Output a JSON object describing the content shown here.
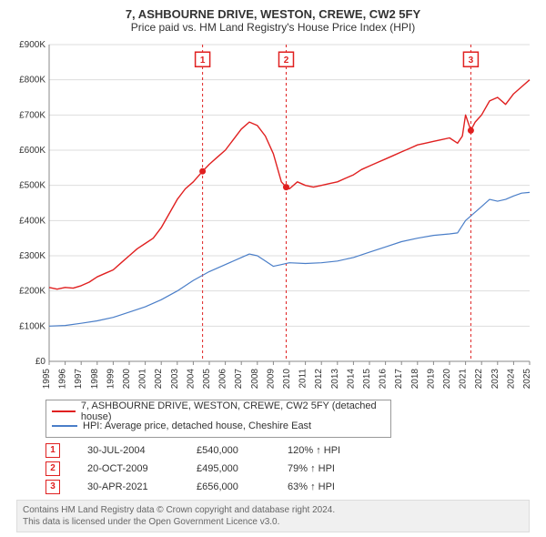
{
  "title": "7, ASHBOURNE DRIVE, WESTON, CREWE, CW2 5FY",
  "subtitle": "Price paid vs. HM Land Registry's House Price Index (HPI)",
  "chart": {
    "type": "line",
    "xlim": [
      1995,
      2025
    ],
    "ylim": [
      0,
      900000
    ],
    "ytick_step": 100000,
    "x_ticks": [
      1995,
      1996,
      1997,
      1998,
      1999,
      2000,
      2001,
      2002,
      2003,
      2004,
      2005,
      2006,
      2007,
      2008,
      2009,
      2010,
      2011,
      2012,
      2013,
      2014,
      2015,
      2016,
      2017,
      2018,
      2019,
      2020,
      2021,
      2022,
      2023,
      2024,
      2025
    ],
    "y_ticks": [
      0,
      100000,
      200000,
      300000,
      400000,
      500000,
      600000,
      700000,
      800000,
      900000
    ],
    "y_tick_labels": [
      "£0",
      "£100K",
      "£200K",
      "£300K",
      "£400K",
      "£500K",
      "£600K",
      "£700K",
      "£800K",
      "£900K"
    ],
    "background_color": "#ffffff",
    "grid_color": "#dddddd",
    "axis_color": "#888888",
    "tick_font_size": 10,
    "series": [
      {
        "name": "7, ASHBOURNE DRIVE, WESTON, CREWE, CW2 5FY (detached house)",
        "color": "#e02020",
        "width": 1.4,
        "data": [
          [
            1995,
            210000
          ],
          [
            1995.5,
            205000
          ],
          [
            1996,
            210000
          ],
          [
            1996.5,
            208000
          ],
          [
            1997,
            215000
          ],
          [
            1997.5,
            225000
          ],
          [
            1998,
            240000
          ],
          [
            1998.5,
            250000
          ],
          [
            1999,
            260000
          ],
          [
            1999.5,
            280000
          ],
          [
            2000,
            300000
          ],
          [
            2000.5,
            320000
          ],
          [
            2001,
            335000
          ],
          [
            2001.5,
            350000
          ],
          [
            2002,
            380000
          ],
          [
            2002.5,
            420000
          ],
          [
            2003,
            460000
          ],
          [
            2003.5,
            490000
          ],
          [
            2004,
            510000
          ],
          [
            2004.58,
            540000
          ],
          [
            2005,
            560000
          ],
          [
            2005.5,
            580000
          ],
          [
            2006,
            600000
          ],
          [
            2006.5,
            630000
          ],
          [
            2007,
            660000
          ],
          [
            2007.5,
            680000
          ],
          [
            2008,
            670000
          ],
          [
            2008.5,
            640000
          ],
          [
            2009,
            590000
          ],
          [
            2009.5,
            510000
          ],
          [
            2009.8,
            495000
          ],
          [
            2010,
            490000
          ],
          [
            2010.5,
            510000
          ],
          [
            2011,
            500000
          ],
          [
            2011.5,
            495000
          ],
          [
            2012,
            500000
          ],
          [
            2012.5,
            505000
          ],
          [
            2013,
            510000
          ],
          [
            2013.5,
            520000
          ],
          [
            2014,
            530000
          ],
          [
            2014.5,
            545000
          ],
          [
            2015,
            555000
          ],
          [
            2015.5,
            565000
          ],
          [
            2016,
            575000
          ],
          [
            2016.5,
            585000
          ],
          [
            2017,
            595000
          ],
          [
            2017.5,
            605000
          ],
          [
            2018,
            615000
          ],
          [
            2018.5,
            620000
          ],
          [
            2019,
            625000
          ],
          [
            2019.5,
            630000
          ],
          [
            2020,
            635000
          ],
          [
            2020.5,
            620000
          ],
          [
            2020.8,
            640000
          ],
          [
            2021,
            700000
          ],
          [
            2021.33,
            656000
          ],
          [
            2021.6,
            680000
          ],
          [
            2022,
            700000
          ],
          [
            2022.5,
            740000
          ],
          [
            2023,
            750000
          ],
          [
            2023.5,
            730000
          ],
          [
            2024,
            760000
          ],
          [
            2024.5,
            780000
          ],
          [
            2025,
            800000
          ]
        ]
      },
      {
        "name": "HPI: Average price, detached house, Cheshire East",
        "color": "#4a7ec8",
        "width": 1.2,
        "data": [
          [
            1995,
            100000
          ],
          [
            1996,
            102000
          ],
          [
            1997,
            108000
          ],
          [
            1998,
            115000
          ],
          [
            1999,
            125000
          ],
          [
            2000,
            140000
          ],
          [
            2001,
            155000
          ],
          [
            2002,
            175000
          ],
          [
            2003,
            200000
          ],
          [
            2004,
            230000
          ],
          [
            2005,
            255000
          ],
          [
            2006,
            275000
          ],
          [
            2007,
            295000
          ],
          [
            2007.5,
            305000
          ],
          [
            2008,
            300000
          ],
          [
            2008.5,
            285000
          ],
          [
            2009,
            270000
          ],
          [
            2009.5,
            275000
          ],
          [
            2010,
            280000
          ],
          [
            2011,
            278000
          ],
          [
            2012,
            280000
          ],
          [
            2013,
            285000
          ],
          [
            2014,
            295000
          ],
          [
            2015,
            310000
          ],
          [
            2016,
            325000
          ],
          [
            2017,
            340000
          ],
          [
            2018,
            350000
          ],
          [
            2019,
            358000
          ],
          [
            2020,
            362000
          ],
          [
            2020.5,
            365000
          ],
          [
            2021,
            400000
          ],
          [
            2022,
            440000
          ],
          [
            2022.5,
            460000
          ],
          [
            2023,
            455000
          ],
          [
            2023.5,
            460000
          ],
          [
            2024,
            470000
          ],
          [
            2024.5,
            478000
          ],
          [
            2025,
            480000
          ]
        ]
      }
    ],
    "markers": [
      {
        "id": "1",
        "x": 2004.58,
        "y": 540000,
        "label_y": 858000
      },
      {
        "id": "2",
        "x": 2009.8,
        "y": 495000,
        "label_y": 858000
      },
      {
        "id": "3",
        "x": 2021.33,
        "y": 656000,
        "label_y": 858000
      }
    ],
    "marker_color": "#e02020",
    "marker_dash": "3,3"
  },
  "legend": {
    "items": [
      {
        "color": "#e02020",
        "label": "7, ASHBOURNE DRIVE, WESTON, CREWE, CW2 5FY (detached house)"
      },
      {
        "color": "#4a7ec8",
        "label": "HPI: Average price, detached house, Cheshire East"
      }
    ]
  },
  "marker_table": [
    {
      "id": "1",
      "date": "30-JUL-2004",
      "price": "£540,000",
      "pct": "120% ↑ HPI"
    },
    {
      "id": "2",
      "date": "20-OCT-2009",
      "price": "£495,000",
      "pct": "79% ↑ HPI"
    },
    {
      "id": "3",
      "date": "30-APR-2021",
      "price": "£656,000",
      "pct": "63% ↑ HPI"
    }
  ],
  "footnote_line1": "Contains HM Land Registry data © Crown copyright and database right 2024.",
  "footnote_line2": "This data is licensed under the Open Government Licence v3.0."
}
